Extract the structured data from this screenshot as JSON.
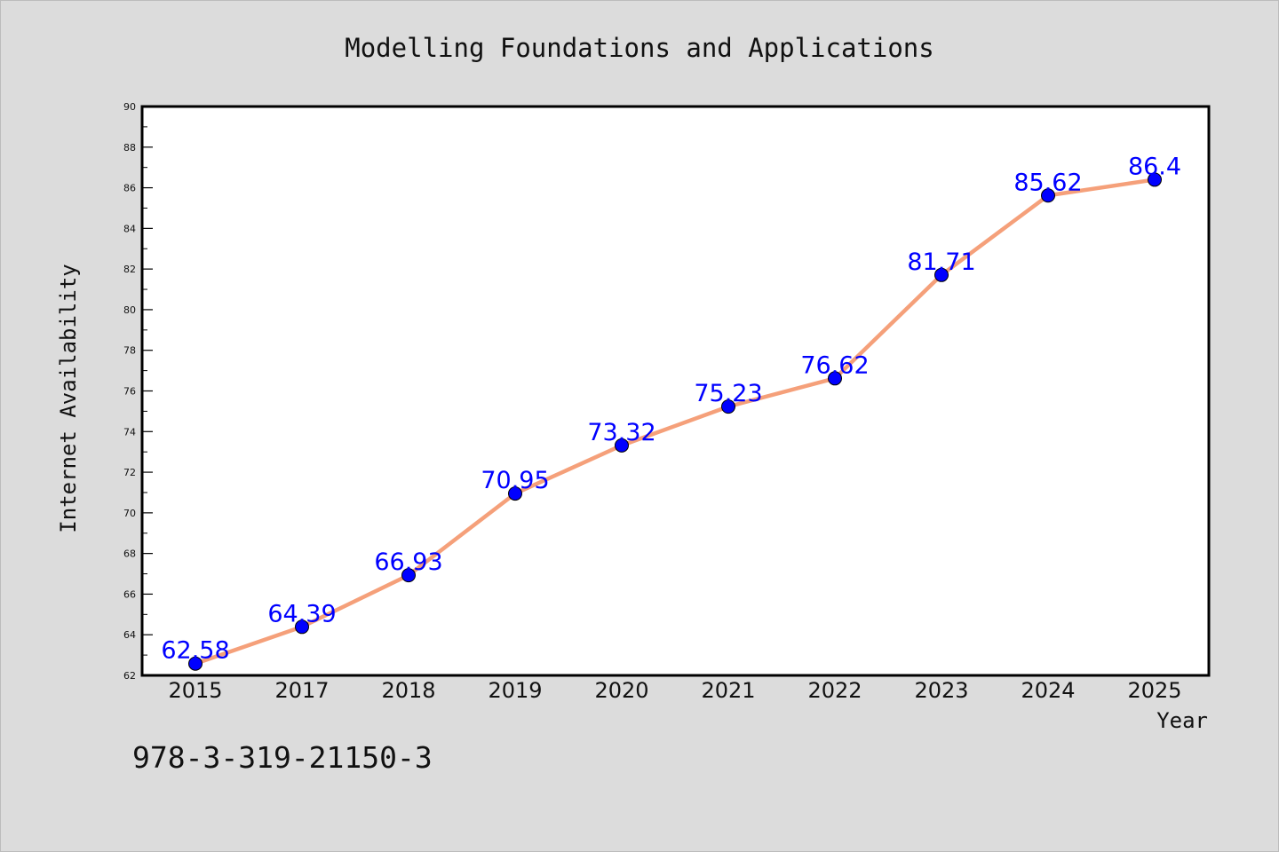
{
  "chart_data": {
    "type": "line",
    "title": "Modelling Foundations and Applications",
    "xlabel": "Year",
    "ylabel": "Internet Availability",
    "categories": [
      "2015",
      "2017",
      "2018",
      "2019",
      "2020",
      "2021",
      "2022",
      "2023",
      "2024",
      "2025"
    ],
    "series": [
      {
        "values": [
          62.58,
          64.39,
          66.93,
          70.95,
          73.32,
          75.23,
          76.62,
          81.71,
          85.62,
          86.4
        ],
        "line_color": "#f5a07a",
        "marker_color": "#0000ff",
        "label_color": "#0000ff"
      }
    ],
    "data_labels": [
      "62.58",
      "64.39",
      "66.93",
      "70.95",
      "73.32",
      "75.23",
      "76.62",
      "81.71",
      "85.62",
      "86.4"
    ],
    "ylim": [
      62,
      90
    ],
    "yticks": [
      62,
      64,
      66,
      68,
      70,
      72,
      74,
      76,
      78,
      80,
      82,
      84,
      86,
      88,
      90
    ],
    "grid": false,
    "legend": "none"
  },
  "footer": {
    "isbn": "978-3-319-21150-3"
  }
}
